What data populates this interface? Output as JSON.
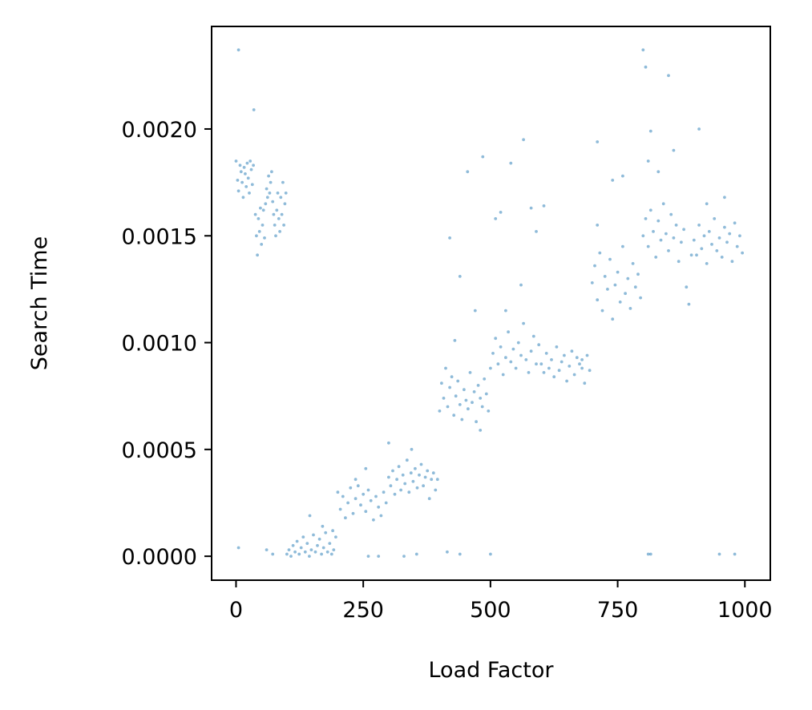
{
  "chart_data": {
    "type": "scatter",
    "xlabel": "Load Factor",
    "ylabel": "Search Time",
    "xlim": [
      -48,
      1050
    ],
    "ylim": [
      -0.000112,
      0.00248
    ],
    "x_ticks": [
      {
        "value": 0,
        "label": "0"
      },
      {
        "value": 250,
        "label": "250"
      },
      {
        "value": 500,
        "label": "500"
      },
      {
        "value": 750,
        "label": "750"
      },
      {
        "value": 1000,
        "label": "1000"
      }
    ],
    "y_ticks": [
      {
        "value": 0.0,
        "label": "0.0000"
      },
      {
        "value": 0.0005,
        "label": "0.0005"
      },
      {
        "value": 0.001,
        "label": "0.0010"
      },
      {
        "value": 0.0015,
        "label": "0.0015"
      },
      {
        "value": 0.002,
        "label": "0.0020"
      }
    ],
    "grid": false,
    "marker_color": "#1f77b4",
    "marker_opacity": 0.5,
    "series": [
      {
        "points": [
          [
            0,
            0.00185
          ],
          [
            3,
            0.00176
          ],
          [
            5,
            0.00171
          ],
          [
            8,
            0.00183
          ],
          [
            10,
            0.0018
          ],
          [
            12,
            0.00175
          ],
          [
            14,
            0.00168
          ],
          [
            16,
            0.00182
          ],
          [
            18,
            0.00179
          ],
          [
            20,
            0.00173
          ],
          [
            22,
            0.00184
          ],
          [
            24,
            0.00177
          ],
          [
            26,
            0.0017
          ],
          [
            28,
            0.00185
          ],
          [
            30,
            0.00181
          ],
          [
            32,
            0.00174
          ],
          [
            34,
            0.00183
          ],
          [
            5,
            0.00237
          ],
          [
            35,
            0.00209
          ],
          [
            5,
            4e-05
          ],
          [
            38,
            0.0016
          ],
          [
            40,
            0.0015
          ],
          [
            42,
            0.00141
          ],
          [
            44,
            0.00158
          ],
          [
            46,
            0.00152
          ],
          [
            48,
            0.00163
          ],
          [
            50,
            0.00146
          ],
          [
            52,
            0.00155
          ],
          [
            54,
            0.00162
          ],
          [
            56,
            0.00149
          ],
          [
            58,
            0.00165
          ],
          [
            60,
            0.00172
          ],
          [
            62,
            0.00168
          ],
          [
            64,
            0.00178
          ],
          [
            66,
            0.0017
          ],
          [
            68,
            0.00175
          ],
          [
            70,
            0.0018
          ],
          [
            72,
            0.00166
          ],
          [
            74,
            0.0016
          ],
          [
            76,
            0.00155
          ],
          [
            78,
            0.0015
          ],
          [
            80,
            0.00162
          ],
          [
            82,
            0.0017
          ],
          [
            84,
            0.00158
          ],
          [
            86,
            0.00152
          ],
          [
            88,
            0.00168
          ],
          [
            90,
            0.0016
          ],
          [
            92,
            0.00175
          ],
          [
            94,
            0.00155
          ],
          [
            96,
            0.00165
          ],
          [
            98,
            0.0017
          ],
          [
            60,
            3e-05
          ],
          [
            72,
            1e-05
          ],
          [
            100,
            1e-05
          ],
          [
            104,
            3e-05
          ],
          [
            108,
            0.0
          ],
          [
            112,
            5e-05
          ],
          [
            116,
            2e-05
          ],
          [
            120,
            7e-05
          ],
          [
            124,
            1e-05
          ],
          [
            128,
            4e-05
          ],
          [
            132,
            9e-05
          ],
          [
            136,
            2e-05
          ],
          [
            140,
            6e-05
          ],
          [
            144,
            0.0
          ],
          [
            148,
            3e-05
          ],
          [
            152,
            0.0001
          ],
          [
            156,
            2e-05
          ],
          [
            160,
            5e-05
          ],
          [
            164,
            8e-05
          ],
          [
            168,
            1e-05
          ],
          [
            172,
            4e-05
          ],
          [
            176,
            0.00011
          ],
          [
            180,
            2e-05
          ],
          [
            184,
            6e-05
          ],
          [
            188,
            1e-05
          ],
          [
            192,
            3e-05
          ],
          [
            196,
            9e-05
          ],
          [
            145,
            0.00019
          ],
          [
            170,
            0.00014
          ],
          [
            190,
            0.00012
          ],
          [
            200,
            0.0003
          ],
          [
            205,
            0.00022
          ],
          [
            210,
            0.00028
          ],
          [
            215,
            0.00018
          ],
          [
            220,
            0.00025
          ],
          [
            225,
            0.00032
          ],
          [
            230,
            0.0002
          ],
          [
            235,
            0.00027
          ],
          [
            240,
            0.00033
          ],
          [
            245,
            0.00024
          ],
          [
            250,
            0.00029
          ],
          [
            255,
            0.00021
          ],
          [
            260,
            0.00031
          ],
          [
            265,
            0.00026
          ],
          [
            270,
            0.00017
          ],
          [
            275,
            0.00028
          ],
          [
            280,
            0.00023
          ],
          [
            285,
            0.00019
          ],
          [
            290,
            0.0003
          ],
          [
            295,
            0.00025
          ],
          [
            255,
            0.00041
          ],
          [
            235,
            0.00036
          ],
          [
            260,
            0.0
          ],
          [
            280,
            0.0
          ],
          [
            300,
            0.00037
          ],
          [
            304,
            0.00033
          ],
          [
            308,
            0.0004
          ],
          [
            312,
            0.00029
          ],
          [
            316,
            0.00036
          ],
          [
            320,
            0.00042
          ],
          [
            324,
            0.00031
          ],
          [
            328,
            0.00038
          ],
          [
            332,
            0.00034
          ],
          [
            336,
            0.00045
          ],
          [
            340,
            0.0003
          ],
          [
            344,
            0.00039
          ],
          [
            348,
            0.00035
          ],
          [
            352,
            0.00041
          ],
          [
            356,
            0.00032
          ],
          [
            360,
            0.00038
          ],
          [
            364,
            0.00043
          ],
          [
            368,
            0.00033
          ],
          [
            372,
            0.00037
          ],
          [
            376,
            0.0004
          ],
          [
            380,
            0.00027
          ],
          [
            384,
            0.00036
          ],
          [
            388,
            0.00039
          ],
          [
            392,
            0.00031
          ],
          [
            396,
            0.00036
          ],
          [
            300,
            0.00053
          ],
          [
            345,
            0.0005
          ],
          [
            330,
            0.0
          ],
          [
            355,
            1e-05
          ],
          [
            400,
            0.00068
          ],
          [
            404,
            0.00081
          ],
          [
            408,
            0.00074
          ],
          [
            412,
            0.00088
          ],
          [
            416,
            0.0007
          ],
          [
            420,
            0.00079
          ],
          [
            424,
            0.00084
          ],
          [
            428,
            0.00066
          ],
          [
            432,
            0.00075
          ],
          [
            436,
            0.00082
          ],
          [
            440,
            0.00071
          ],
          [
            444,
            0.00064
          ],
          [
            448,
            0.00078
          ],
          [
            452,
            0.00073
          ],
          [
            456,
            0.00069
          ],
          [
            460,
            0.00086
          ],
          [
            464,
            0.00072
          ],
          [
            468,
            0.00077
          ],
          [
            472,
            0.00063
          ],
          [
            476,
            0.0008
          ],
          [
            480,
            0.00074
          ],
          [
            484,
            0.0007
          ],
          [
            488,
            0.00083
          ],
          [
            492,
            0.00076
          ],
          [
            496,
            0.00068
          ],
          [
            420,
            0.00149
          ],
          [
            440,
            0.00131
          ],
          [
            455,
            0.0018
          ],
          [
            470,
            0.00115
          ],
          [
            485,
            0.00187
          ],
          [
            430,
            0.00101
          ],
          [
            415,
            2e-05
          ],
          [
            440,
            1e-05
          ],
          [
            480,
            0.00059
          ],
          [
            500,
            0.00088
          ],
          [
            505,
            0.00095
          ],
          [
            510,
            0.00102
          ],
          [
            515,
            0.0009
          ],
          [
            520,
            0.00098
          ],
          [
            525,
            0.00085
          ],
          [
            530,
            0.00093
          ],
          [
            535,
            0.00105
          ],
          [
            540,
            0.00091
          ],
          [
            545,
            0.00097
          ],
          [
            550,
            0.00088
          ],
          [
            555,
            0.001
          ],
          [
            560,
            0.00094
          ],
          [
            565,
            0.00109
          ],
          [
            570,
            0.00092
          ],
          [
            575,
            0.00086
          ],
          [
            580,
            0.00096
          ],
          [
            585,
            0.00103
          ],
          [
            590,
            0.0009
          ],
          [
            595,
            0.00099
          ],
          [
            510,
            0.00158
          ],
          [
            520,
            0.00161
          ],
          [
            540,
            0.00184
          ],
          [
            565,
            0.00195
          ],
          [
            580,
            0.00163
          ],
          [
            590,
            0.00152
          ],
          [
            530,
            0.00115
          ],
          [
            500,
            1e-05
          ],
          [
            560,
            0.00127
          ],
          [
            600,
            0.0009
          ],
          [
            605,
            0.00086
          ],
          [
            610,
            0.00095
          ],
          [
            615,
            0.00088
          ],
          [
            620,
            0.00092
          ],
          [
            625,
            0.00084
          ],
          [
            630,
            0.00098
          ],
          [
            635,
            0.00087
          ],
          [
            640,
            0.00091
          ],
          [
            645,
            0.00094
          ],
          [
            650,
            0.00082
          ],
          [
            655,
            0.00089
          ],
          [
            660,
            0.00096
          ],
          [
            665,
            0.00085
          ],
          [
            670,
            0.00093
          ],
          [
            675,
            0.0009
          ],
          [
            680,
            0.00088
          ],
          [
            685,
            0.00081
          ],
          [
            690,
            0.00094
          ],
          [
            695,
            0.00087
          ],
          [
            605,
            0.00164
          ],
          [
            680,
            0.00092
          ],
          [
            700,
            0.00128
          ],
          [
            705,
            0.00136
          ],
          [
            710,
            0.0012
          ],
          [
            715,
            0.00142
          ],
          [
            720,
            0.00115
          ],
          [
            725,
            0.00131
          ],
          [
            730,
            0.00125
          ],
          [
            735,
            0.00139
          ],
          [
            740,
            0.00111
          ],
          [
            745,
            0.00127
          ],
          [
            750,
            0.00133
          ],
          [
            755,
            0.00119
          ],
          [
            760,
            0.00145
          ],
          [
            765,
            0.00123
          ],
          [
            770,
            0.0013
          ],
          [
            775,
            0.00116
          ],
          [
            780,
            0.00137
          ],
          [
            785,
            0.00126
          ],
          [
            790,
            0.00132
          ],
          [
            795,
            0.00121
          ],
          [
            710,
            0.00194
          ],
          [
            740,
            0.00176
          ],
          [
            760,
            0.00178
          ],
          [
            710,
            0.00155
          ],
          [
            800,
            0.0015
          ],
          [
            805,
            0.00158
          ],
          [
            810,
            0.00145
          ],
          [
            815,
            0.00162
          ],
          [
            820,
            0.00152
          ],
          [
            825,
            0.0014
          ],
          [
            830,
            0.00157
          ],
          [
            835,
            0.00148
          ],
          [
            840,
            0.00165
          ],
          [
            845,
            0.00151
          ],
          [
            850,
            0.00143
          ],
          [
            855,
            0.0016
          ],
          [
            860,
            0.00149
          ],
          [
            865,
            0.00155
          ],
          [
            870,
            0.00138
          ],
          [
            875,
            0.00147
          ],
          [
            880,
            0.00153
          ],
          [
            885,
            0.00126
          ],
          [
            890,
            0.00118
          ],
          [
            895,
            0.00141
          ],
          [
            800,
            0.00237
          ],
          [
            805,
            0.00229
          ],
          [
            850,
            0.00225
          ],
          [
            815,
            0.00199
          ],
          [
            810,
            0.00185
          ],
          [
            830,
            0.0018
          ],
          [
            860,
            0.0019
          ],
          [
            910,
            0.002
          ],
          [
            815,
            1e-05
          ],
          [
            810,
            1e-05
          ],
          [
            900,
            0.00148
          ],
          [
            905,
            0.00141
          ],
          [
            910,
            0.00155
          ],
          [
            915,
            0.00144
          ],
          [
            920,
            0.0015
          ],
          [
            925,
            0.00137
          ],
          [
            930,
            0.00152
          ],
          [
            935,
            0.00146
          ],
          [
            940,
            0.00158
          ],
          [
            945,
            0.00143
          ],
          [
            950,
            0.00149
          ],
          [
            955,
            0.0014
          ],
          [
            960,
            0.00154
          ],
          [
            965,
            0.00147
          ],
          [
            970,
            0.00151
          ],
          [
            975,
            0.00138
          ],
          [
            980,
            0.00156
          ],
          [
            985,
            0.00145
          ],
          [
            990,
            0.0015
          ],
          [
            995,
            0.00142
          ],
          [
            950,
            1e-05
          ],
          [
            980,
            1e-05
          ],
          [
            925,
            0.00165
          ],
          [
            960,
            0.00168
          ]
        ]
      }
    ]
  }
}
